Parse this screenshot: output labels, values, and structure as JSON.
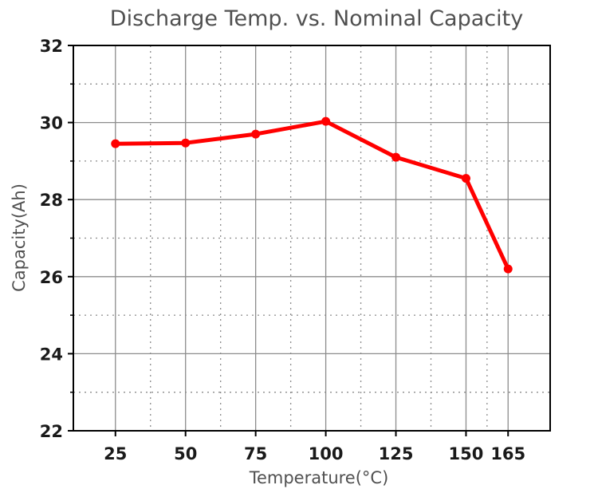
{
  "chart_data": {
    "type": "line",
    "title": "Discharge Temp. vs. Nominal Capacity",
    "xlabel": "Temperature(°C)",
    "ylabel": "Capacity(Ah)",
    "x": [
      25,
      50,
      75,
      100,
      125,
      150,
      165
    ],
    "x_ticks": [
      25,
      50,
      75,
      100,
      125,
      150,
      165
    ],
    "xlim": [
      10,
      180
    ],
    "ylim": [
      22,
      32
    ],
    "y_ticks": [
      22,
      24,
      26,
      28,
      30,
      32
    ],
    "y_minor_ticks": [
      23,
      25,
      27,
      29,
      31
    ],
    "series": [
      {
        "values": [
          29.45,
          29.47,
          29.7,
          30.03,
          29.1,
          28.55,
          26.2
        ],
        "color": "#ff0000"
      }
    ],
    "grid": true,
    "legend": "none"
  }
}
